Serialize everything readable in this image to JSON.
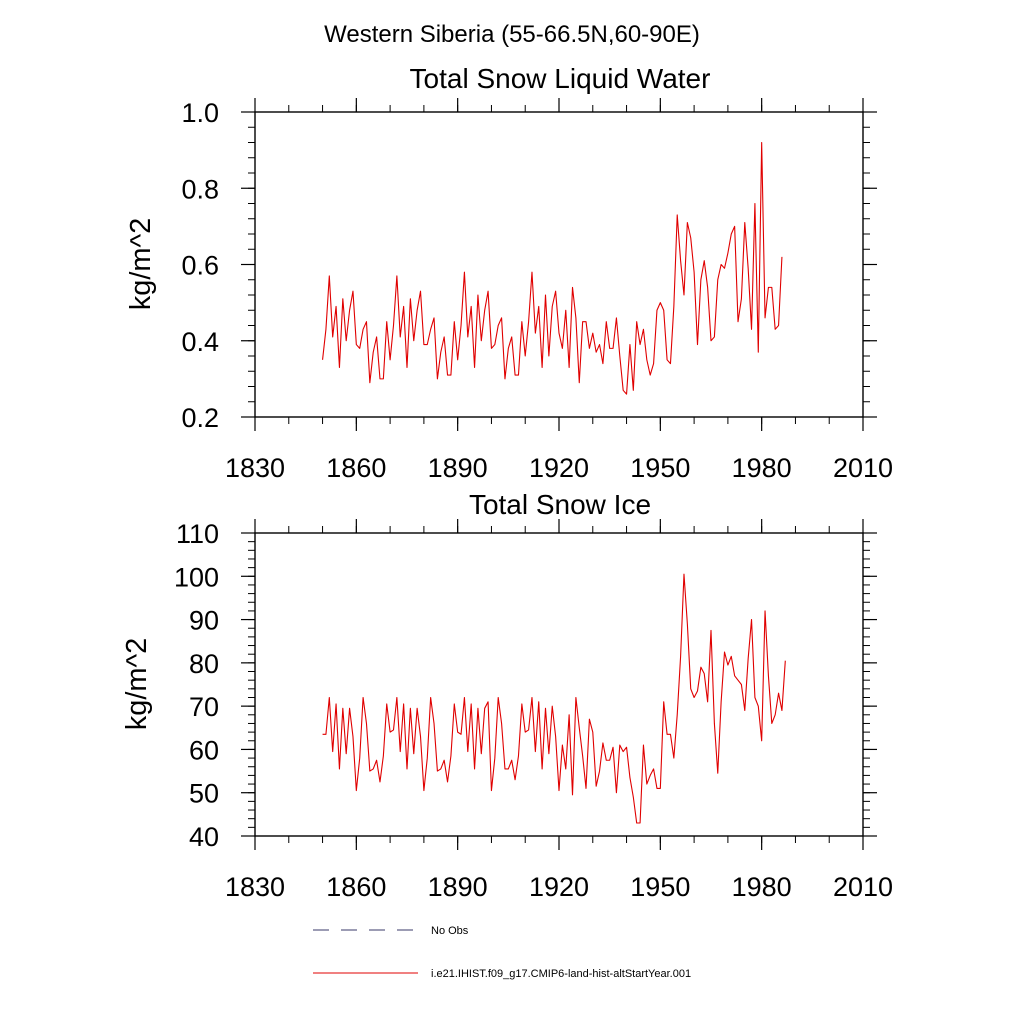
{
  "figure": {
    "suptitle": "Western Siberia (55-66.5N,60-90E)"
  },
  "chart_data": [
    {
      "type": "line",
      "title": "Total Snow Liquid Water",
      "xlabel": "",
      "ylabel": "kg/m^2",
      "xlim": [
        1830,
        2010
      ],
      "ylim": [
        0.2,
        1.0
      ],
      "xticks": [
        "1830",
        "1860",
        "1890",
        "1920",
        "1950",
        "1980",
        "2010"
      ],
      "yticks": [
        "0.2",
        "0.4",
        "0.6",
        "0.8",
        "1.0"
      ],
      "series": [
        {
          "name": "i.e21.IHIST.f09_g17.CMIP6-land-hist-altStartYear.001",
          "color": "#e00000",
          "x_start": 1850,
          "values": [
            0.35,
            0.43,
            0.57,
            0.41,
            0.49,
            0.33,
            0.51,
            0.4,
            0.48,
            0.53,
            0.39,
            0.38,
            0.43,
            0.45,
            0.29,
            0.37,
            0.41,
            0.3,
            0.3,
            0.45,
            0.35,
            0.44,
            0.57,
            0.41,
            0.49,
            0.33,
            0.51,
            0.4,
            0.48,
            0.53,
            0.39,
            0.39,
            0.43,
            0.46,
            0.3,
            0.37,
            0.41,
            0.31,
            0.31,
            0.45,
            0.35,
            0.44,
            0.58,
            0.41,
            0.49,
            0.33,
            0.52,
            0.4,
            0.48,
            0.53,
            0.38,
            0.39,
            0.44,
            0.46,
            0.3,
            0.38,
            0.41,
            0.31,
            0.31,
            0.45,
            0.36,
            0.45,
            0.58,
            0.42,
            0.49,
            0.33,
            0.52,
            0.36,
            0.49,
            0.53,
            0.42,
            0.38,
            0.48,
            0.33,
            0.54,
            0.46,
            0.29,
            0.45,
            0.45,
            0.38,
            0.42,
            0.37,
            0.39,
            0.34,
            0.45,
            0.38,
            0.38,
            0.46,
            0.36,
            0.27,
            0.26,
            0.39,
            0.27,
            0.45,
            0.39,
            0.43,
            0.35,
            0.31,
            0.34,
            0.48,
            0.5,
            0.48,
            0.35,
            0.34,
            0.49,
            0.73,
            0.61,
            0.52,
            0.71,
            0.67,
            0.58,
            0.39,
            0.56,
            0.61,
            0.54,
            0.4,
            0.41,
            0.56,
            0.6,
            0.59,
            0.63,
            0.68,
            0.7,
            0.45,
            0.51,
            0.71,
            0.59,
            0.43,
            0.76,
            0.37,
            0.92,
            0.46,
            0.54,
            0.54,
            0.43,
            0.44,
            0.62
          ]
        }
      ]
    },
    {
      "type": "line",
      "title": "Total Snow Ice",
      "xlabel": "",
      "ylabel": "kg/m^2",
      "xlim": [
        1830,
        2010
      ],
      "ylim": [
        40,
        110
      ],
      "xticks": [
        "1830",
        "1860",
        "1890",
        "1920",
        "1950",
        "1980",
        "2010"
      ],
      "yticks": [
        "40",
        "50",
        "60",
        "70",
        "80",
        "90",
        "100",
        "110"
      ],
      "series": [
        {
          "name": "i.e21.IHIST.f09_g17.CMIP6-land-hist-altStartYear.001",
          "color": "#e00000",
          "x_start": 1850,
          "values": [
            63.5,
            63.5,
            72,
            59.5,
            70.5,
            55.5,
            69.5,
            59,
            69.5,
            63,
            50.5,
            58,
            72,
            66,
            55,
            55.5,
            57.5,
            52.5,
            58.5,
            70.5,
            64,
            64.5,
            72,
            59.5,
            70.5,
            55.5,
            69.5,
            59,
            69.5,
            63,
            50.5,
            58,
            72,
            66,
            55,
            55.5,
            57.5,
            52.5,
            58.5,
            70.5,
            64,
            63.5,
            72,
            59.5,
            70.5,
            55.5,
            69.5,
            59,
            69.5,
            71,
            50.5,
            58,
            72,
            66,
            55.5,
            55.5,
            57.5,
            53,
            58.5,
            70.5,
            64,
            64.5,
            72,
            59.5,
            71,
            55.5,
            69.5,
            59,
            70,
            63,
            50.5,
            61,
            55.5,
            68,
            49.5,
            72,
            65,
            58.5,
            51,
            67,
            64,
            51.5,
            55,
            61.5,
            57.5,
            57.5,
            60.5,
            50,
            61,
            59.5,
            60.5,
            53.5,
            49,
            43,
            43,
            61,
            52,
            54,
            55.5,
            51,
            51,
            71,
            63.5,
            63.5,
            58,
            68,
            81.5,
            100.5,
            89,
            74,
            72,
            73.5,
            79,
            77.5,
            71,
            87.5,
            66,
            54.5,
            71,
            82.5,
            79.5,
            81.5,
            77,
            76,
            75,
            69,
            81,
            90,
            72,
            70,
            62,
            92,
            77,
            66,
            68,
            73,
            69,
            80.5
          ]
        }
      ]
    }
  ],
  "legend": {
    "items": [
      {
        "label": "No Obs",
        "style": "dashed",
        "color": "#3a3a6a"
      },
      {
        "label": "i.e21.IHIST.f09_g17.CMIP6-land-hist-altStartYear.001",
        "style": "solid",
        "color": "#e00000"
      }
    ]
  }
}
